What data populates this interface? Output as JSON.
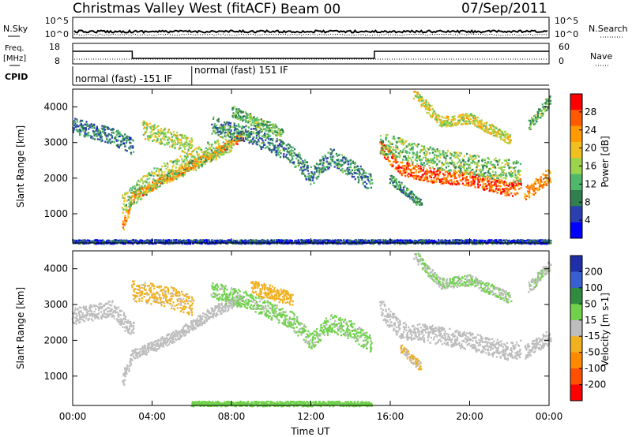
{
  "header": {
    "station": "Christmas Valley West (fitACF)",
    "beam": "Beam 00",
    "date": "07/Sep/2011"
  },
  "status_panels": {
    "nsky_label": "N.Sky",
    "nsky_ticks": [
      "10^5",
      "10^0"
    ],
    "nsearch_label": "N.Search",
    "nsearch_ticks": [
      "10^5",
      "10^0"
    ],
    "freq_label_1": "Freq.",
    "freq_label_2": "[MHz]",
    "freq_ticks": [
      "18",
      "8"
    ],
    "nave_label": "Nave",
    "nave_ticks": [
      "60",
      "0"
    ],
    "cpid_label": "CPID",
    "cpid_modes": [
      "normal (fast) -151 IF",
      "normal (fast) 151 IF"
    ],
    "freq_steps": [
      {
        "from_h": 0,
        "to_h": 3,
        "value_mhz": 15
      },
      {
        "from_h": 3,
        "to_h": 15.2,
        "value_mhz": 10.5
      },
      {
        "from_h": 15.2,
        "to_h": 24,
        "value_mhz": 15
      }
    ],
    "cpid_change_h": 6
  },
  "colors": {
    "power_scale": [
      "#0000ff",
      "#2a3fb0",
      "#2f7f4f",
      "#4fb86a",
      "#9bd44a",
      "#f0c020",
      "#ff9a00",
      "#ff5a00",
      "#ff0000"
    ],
    "velocity_scale": [
      "#1f2fa8",
      "#3a5fd0",
      "#2e8b40",
      "#6fd24a",
      "#bdbdbd",
      "#f0b020",
      "#ff8a00",
      "#ff5000",
      "#ff0000"
    ],
    "data_gray": "#bdbdbd"
  },
  "chart_data": [
    {
      "type": "heatmap",
      "title": "Beam 00",
      "panel": "power",
      "xlabel": "Time UT",
      "ylabel": "Slant Range [km]",
      "x_ticks": [
        "00:00",
        "04:00",
        "08:00",
        "12:00",
        "16:00",
        "20:00",
        "00:00"
      ],
      "xlim_hours": [
        0,
        24
      ],
      "y_ticks": [
        1000,
        2000,
        3000,
        4000
      ],
      "ylim": [
        180,
        4500
      ],
      "colorbar_label": "Power [dB]",
      "colorbar_ticks": [
        28,
        24,
        20,
        16,
        12,
        8,
        4
      ],
      "colorbar_range": [
        0,
        30
      ],
      "bands": [
        {
          "t": [
            0.0,
            2.0,
            3.0
          ],
          "r": [
            3500,
            3200,
            2900
          ],
          "w": 450,
          "value": 8
        },
        {
          "t": [
            2.5,
            3.0,
            5.0,
            7.0,
            8.5
          ],
          "r": [
            700,
            1500,
            2100,
            2700,
            3200
          ],
          "w": 250,
          "value": 22
        },
        {
          "t": [
            2.5,
            4.0,
            6.0,
            8.0
          ],
          "r": [
            1300,
            2000,
            2500,
            3100
          ],
          "w": 600,
          "value": 14
        },
        {
          "t": [
            3.5,
            5.0,
            6.0
          ],
          "r": [
            3400,
            3100,
            2900
          ],
          "w": 500,
          "value": 16
        },
        {
          "t": [
            7.0,
            9.0,
            11.0,
            12.0,
            13.0,
            14.0,
            15.0
          ],
          "r": [
            3500,
            3200,
            2700,
            2100,
            2600,
            2300,
            1900
          ],
          "w": 500,
          "value": 9
        },
        {
          "t": [
            8.0,
            10.5
          ],
          "r": [
            3900,
            3300
          ],
          "w": 300,
          "value": 12
        },
        {
          "t": [
            15.5,
            16.5,
            18.0,
            20.0,
            22.0,
            22.5
          ],
          "r": [
            2900,
            2300,
            2100,
            2000,
            1700,
            1800
          ],
          "w": 400,
          "value": 25
        },
        {
          "t": [
            15.5,
            18.0,
            20.0,
            22.5
          ],
          "r": [
            3000,
            2600,
            2400,
            2200
          ],
          "w": 600,
          "value": 13
        },
        {
          "t": [
            16.0,
            17.5
          ],
          "r": [
            2000,
            1300
          ],
          "w": 250,
          "value": 10
        },
        {
          "t": [
            17.2,
            18.5,
            20.0,
            22.0
          ],
          "r": [
            4400,
            3600,
            3700,
            3100
          ],
          "w": 300,
          "value": 17
        },
        {
          "t": [
            22.8,
            24.0
          ],
          "r": [
            1600,
            2100
          ],
          "w": 400,
          "value": 22
        },
        {
          "t": [
            23.0,
            24.0
          ],
          "r": [
            3500,
            4200
          ],
          "w": 300,
          "value": 12
        },
        {
          "t": [
            0.0,
            24.0
          ],
          "r": [
            230,
            230
          ],
          "w": 120,
          "value": 5
        }
      ]
    },
    {
      "type": "heatmap",
      "panel": "velocity",
      "xlabel": "Time UT",
      "ylabel": "Slant Range [km]",
      "x_ticks": [
        "00:00",
        "04:00",
        "08:00",
        "12:00",
        "16:00",
        "20:00",
        "00:00"
      ],
      "xlim_hours": [
        0,
        24
      ],
      "y_ticks": [
        1000,
        2000,
        3000,
        4000
      ],
      "ylim": [
        180,
        4500
      ],
      "colorbar_label": "Velocity [m s-1]",
      "colorbar_ticks": [
        200,
        100,
        50,
        15,
        -15,
        -50,
        -100,
        -200
      ],
      "colorbar_range": [
        -250,
        250
      ],
      "bands": [
        {
          "t": [
            0.0,
            2.0,
            3.0
          ],
          "r": [
            2700,
            2900,
            2300
          ],
          "w": 450,
          "value": 0
        },
        {
          "t": [
            2.5,
            3.0,
            5.0,
            7.0,
            8.5
          ],
          "r": [
            900,
            1600,
            2100,
            2800,
            3200
          ],
          "w": 300,
          "value": 0
        },
        {
          "t": [
            3.0,
            5.0,
            6.0
          ],
          "r": [
            3400,
            3200,
            3000
          ],
          "w": 600,
          "value": -40
        },
        {
          "t": [
            7.0,
            9.0,
            11.0,
            12.0,
            13.0,
            14.0,
            15.0
          ],
          "r": [
            3400,
            3100,
            2600,
            2000,
            2500,
            2300,
            1900
          ],
          "w": 500,
          "value": 40
        },
        {
          "t": [
            9.0,
            11.0
          ],
          "r": [
            3500,
            3200
          ],
          "w": 400,
          "value": -60
        },
        {
          "t": [
            15.5,
            16.5,
            18.0,
            20.0,
            22.0,
            22.5
          ],
          "r": [
            2900,
            2300,
            2200,
            2000,
            1700,
            1800
          ],
          "w": 500,
          "value": 0
        },
        {
          "t": [
            16.5,
            17.5
          ],
          "r": [
            1800,
            1300
          ],
          "w": 250,
          "value": -30
        },
        {
          "t": [
            17.2,
            18.5,
            20.0,
            22.0
          ],
          "r": [
            4400,
            3600,
            3700,
            3200
          ],
          "w": 300,
          "value": 30
        },
        {
          "t": [
            22.8,
            24.0
          ],
          "r": [
            1700,
            2100
          ],
          "w": 400,
          "value": 0
        },
        {
          "t": [
            23.0,
            24.0
          ],
          "r": [
            3500,
            4100
          ],
          "w": 300,
          "value": 20
        },
        {
          "t": [
            6.0,
            15.0
          ],
          "r": [
            240,
            240
          ],
          "w": 150,
          "value": 60
        }
      ]
    }
  ]
}
